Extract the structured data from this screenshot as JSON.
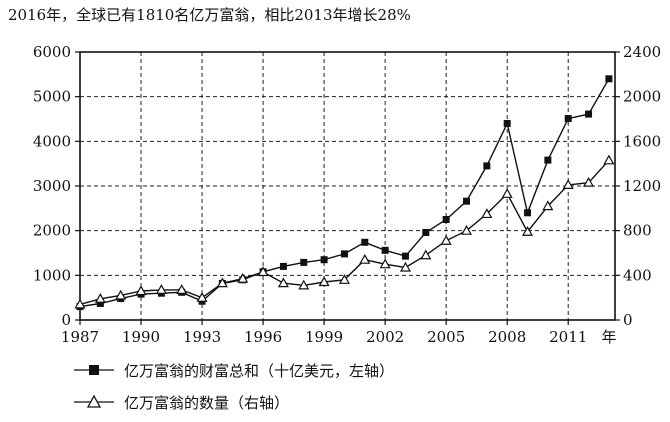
{
  "chart_data": {
    "type": "line",
    "title": "2016年，全球已有1810名亿万富翁，相比2013年增长28%",
    "x": [
      1987,
      1988,
      1989,
      1990,
      1991,
      1992,
      1993,
      1994,
      1995,
      1996,
      1997,
      1998,
      1999,
      2000,
      2001,
      2002,
      2003,
      2004,
      2005,
      2006,
      2007,
      2008,
      2009,
      2010,
      2011,
      2012,
      2013
    ],
    "x_ticks": [
      "1987",
      "1990",
      "1993",
      "1996",
      "1999",
      "2002",
      "2005",
      "2008",
      "2011"
    ],
    "x_unit_label": "年",
    "xlim": [
      1987,
      2013.3
    ],
    "y_left_ticks": [
      "0",
      "1000",
      "2000",
      "3000",
      "4000",
      "5000",
      "6000"
    ],
    "y_right_ticks": [
      "0",
      "400",
      "800",
      "1200",
      "1600",
      "2000",
      "2400"
    ],
    "ylim_left": [
      0,
      6000
    ],
    "ylim_right": [
      0,
      2400
    ],
    "grid": true,
    "series": [
      {
        "name": "亿万富翁的财富总和（十亿美元，左轴）",
        "axis": "left",
        "marker": "square",
        "values": [
          300,
          370,
          480,
          580,
          600,
          620,
          420,
          820,
          900,
          1080,
          1200,
          1290,
          1350,
          1480,
          1740,
          1560,
          1430,
          1960,
          2250,
          2660,
          3450,
          4400,
          2400,
          3580,
          4510,
          4610,
          5400
        ]
      },
      {
        "name": "亿万富翁的数量（右轴）",
        "axis": "right",
        "marker": "triangle",
        "values": [
          140,
          190,
          220,
          260,
          270,
          270,
          200,
          330,
          370,
          430,
          330,
          310,
          340,
          360,
          540,
          500,
          470,
          580,
          710,
          800,
          950,
          1130,
          790,
          1020,
          1210,
          1230,
          1430
        ]
      }
    ]
  }
}
